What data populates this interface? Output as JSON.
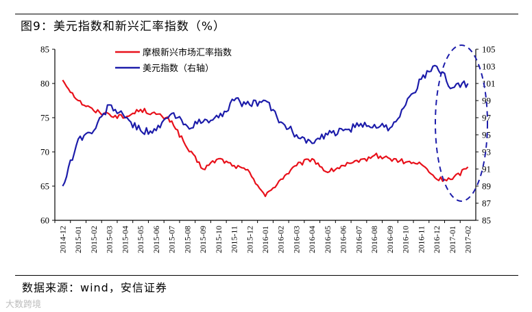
{
  "figure": {
    "title": "图9：美元指数和新兴汇率指数（%）",
    "source": "数据来源：wind，安信证券",
    "watermark": "大数跨境"
  },
  "colors": {
    "em_index": "#e8101a",
    "usd_index": "#1c1caa",
    "highlight": "#1c1caa"
  },
  "chart_data": {
    "type": "line",
    "x": [
      "2014-12",
      "2015-01",
      "2015-02",
      "2015-03",
      "2015-04",
      "2015-05",
      "2015-06",
      "2015-07",
      "2015-08",
      "2015-09",
      "2015-10",
      "2015-11",
      "2015-12",
      "2016-01",
      "2016-02",
      "2016-03",
      "2016-04",
      "2016-05",
      "2016-06",
      "2016-07",
      "2016-08",
      "2016-09",
      "2016-10",
      "2016-11",
      "2016-12",
      "2017-01",
      "2017-02"
    ],
    "series": [
      {
        "name": "摩根新兴市场汇率指数",
        "axis": "left",
        "values": [
          80.5,
          77.5,
          76.0,
          75.5,
          75.0,
          76.2,
          75.5,
          74.5,
          70.5,
          67.5,
          69.0,
          68.0,
          67.0,
          63.5,
          66.0,
          68.0,
          69.0,
          67.0,
          68.0,
          68.5,
          69.5,
          69.0,
          68.5,
          68.2,
          66.0,
          66.0,
          67.8
        ]
      },
      {
        "name": "美元指数（右轴）",
        "axis": "right",
        "values": [
          89.0,
          94.5,
          95.5,
          98.5,
          97.0,
          95.5,
          95.5,
          97.5,
          96.0,
          96.5,
          97.0,
          99.0,
          98.5,
          99.0,
          96.5,
          95.0,
          94.0,
          95.0,
          95.5,
          96.0,
          96.2,
          95.8,
          98.5,
          101.5,
          103.0,
          100.5,
          101.0
        ]
      }
    ],
    "left_axis": {
      "ylim": [
        60,
        85
      ],
      "ticks": [
        "60",
        "65",
        "70",
        "75",
        "80",
        "85"
      ]
    },
    "right_axis": {
      "ylim": [
        85,
        105
      ],
      "ticks": [
        "85",
        "87",
        "89",
        "91",
        "93",
        "95",
        "97",
        "99",
        "101",
        "103",
        "105"
      ]
    },
    "x_tick_labels": [
      "2014-12",
      "2015-01",
      "2015-02",
      "2015-03",
      "2015-04",
      "2015-05",
      "2015-06",
      "2015-07",
      "2015-08",
      "2015-09",
      "2015-10",
      "2015-11",
      "2015-12",
      "2016-01",
      "2016-02",
      "2016-03",
      "2016-04",
      "2016-05",
      "2016-06",
      "2016-07",
      "2016-08",
      "2016-09",
      "2016-10",
      "2016-11",
      "2016-12",
      "2017-01",
      "2017-02"
    ],
    "legend": [
      "摩根新兴市场汇率指数",
      "美元指数（右轴）"
    ],
    "annotation": "dashed ellipse around 2016-12 to 2017-02",
    "grid": false
  }
}
